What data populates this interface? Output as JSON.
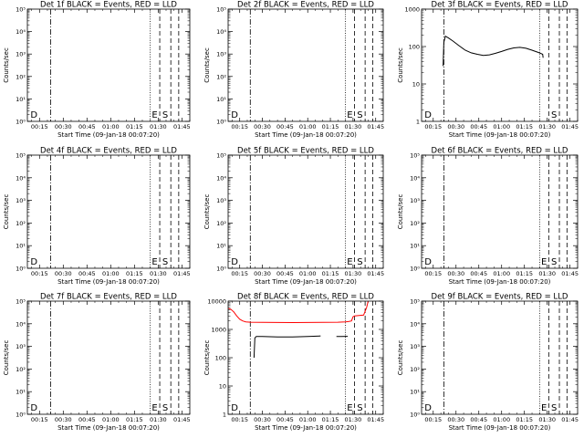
{
  "figure": {
    "xlabel": "Start Time (09-Jan-18 00:07:20)",
    "ylabel": "Counts/sec",
    "x_ticks": [
      "00:15",
      "00:30",
      "00:45",
      "01:00",
      "01:15",
      "01:30",
      "01:45"
    ],
    "x_tick_minutes": [
      15,
      30,
      45,
      60,
      75,
      90,
      105
    ],
    "x_range_minutes": [
      7.33,
      110
    ],
    "colors": {
      "events": "#000000",
      "lld": "#ff0000",
      "background": "#ffffff"
    }
  },
  "chart_data": [
    {
      "id": "1f",
      "type": "line",
      "title": "Det 1f BLACK = Events, RED = LLD",
      "yscale": "log",
      "ylim": [
        1,
        100000
      ],
      "y_ticks": [
        "10⁰",
        "10¹",
        "10²",
        "10³",
        "10⁴",
        "10⁵"
      ],
      "xlabel": "Start Time (09-Jan-18 00:07:20)",
      "ylabel": "Counts/sec",
      "series": [],
      "vlines": [
        {
          "x": 22,
          "style": "dashdot"
        },
        {
          "x": 85,
          "style": "dotted"
        },
        {
          "x": 91,
          "style": "dashed"
        },
        {
          "x": 98,
          "style": "dashed"
        },
        {
          "x": 103,
          "style": "dashed"
        }
      ],
      "markers": [
        {
          "text": "D",
          "x": 9.3
        },
        {
          "text": "E",
          "x": 86
        },
        {
          "text": "S",
          "x": 92.6
        }
      ]
    },
    {
      "id": "2f",
      "type": "line",
      "title": "Det 2f BLACK = Events, RED = LLD",
      "yscale": "log",
      "ylim": [
        1,
        100000
      ],
      "y_ticks": [
        "10⁰",
        "10¹",
        "10²",
        "10³",
        "10⁴",
        "10⁵"
      ],
      "xlabel": "Start Time (09-Jan-18 00:07:20)",
      "ylabel": "Counts/sec",
      "series": [],
      "vlines": [
        {
          "x": 22,
          "style": "dashdot"
        },
        {
          "x": 85,
          "style": "dotted"
        },
        {
          "x": 91,
          "style": "dashed"
        },
        {
          "x": 98,
          "style": "dashed"
        },
        {
          "x": 103,
          "style": "dashed"
        }
      ],
      "markers": [
        {
          "text": "D",
          "x": 9.3
        },
        {
          "text": "E",
          "x": 86
        },
        {
          "text": "S",
          "x": 92.6
        }
      ]
    },
    {
      "id": "3f",
      "type": "line",
      "title": "Det 3f BLACK = Events, RED = LLD",
      "yscale": "log",
      "ylim": [
        1,
        1000
      ],
      "y_ticks": [
        "1",
        "10",
        "100",
        "1000"
      ],
      "xlabel": "Start Time (09-Jan-18 00:07:20)",
      "ylabel": "Counts/sec",
      "series": [
        {
          "color": "#000000",
          "points": [
            [
              21.5,
              30
            ],
            [
              22,
              130
            ],
            [
              23,
              190
            ],
            [
              25,
              170
            ],
            [
              28,
              140
            ],
            [
              32,
              105
            ],
            [
              36,
              80
            ],
            [
              40,
              68
            ],
            [
              44,
              62
            ],
            [
              48,
              58
            ],
            [
              52,
              60
            ],
            [
              56,
              66
            ],
            [
              60,
              74
            ],
            [
              64,
              84
            ],
            [
              68,
              92
            ],
            [
              72,
              95
            ],
            [
              76,
              90
            ],
            [
              80,
              80
            ],
            [
              84,
              70
            ],
            [
              86,
              65
            ],
            [
              87,
              62
            ],
            [
              87.3,
              50
            ]
          ]
        }
      ],
      "vlines": [
        {
          "x": 22,
          "style": "dashdot"
        },
        {
          "x": 85,
          "style": "dotted"
        },
        {
          "x": 91,
          "style": "dashed"
        },
        {
          "x": 98,
          "style": "dashed"
        },
        {
          "x": 103,
          "style": "dashed"
        }
      ],
      "markers": [
        {
          "text": "D",
          "x": 9.3
        },
        {
          "text": "S",
          "x": 92.6
        }
      ]
    },
    {
      "id": "4f",
      "type": "line",
      "title": "Det 4f BLACK = Events, RED = LLD",
      "yscale": "log",
      "ylim": [
        1,
        100000
      ],
      "y_ticks": [
        "10⁰",
        "10¹",
        "10²",
        "10³",
        "10⁴",
        "10⁵"
      ],
      "xlabel": "Start Time (09-Jan-18 00:07:20)",
      "ylabel": "Counts/sec",
      "series": [],
      "vlines": [
        {
          "x": 22,
          "style": "dashdot"
        },
        {
          "x": 85,
          "style": "dotted"
        },
        {
          "x": 91,
          "style": "dashed"
        },
        {
          "x": 98,
          "style": "dashed"
        },
        {
          "x": 103,
          "style": "dashed"
        }
      ],
      "markers": [
        {
          "text": "D",
          "x": 9.3
        },
        {
          "text": "E",
          "x": 86
        },
        {
          "text": "S",
          "x": 92.6
        }
      ]
    },
    {
      "id": "5f",
      "type": "line",
      "title": "Det 5f BLACK = Events, RED = LLD",
      "yscale": "log",
      "ylim": [
        1,
        100000
      ],
      "y_ticks": [
        "10⁰",
        "10¹",
        "10²",
        "10³",
        "10⁴",
        "10⁵"
      ],
      "xlabel": "Start Time (09-Jan-18 00:07:20)",
      "ylabel": "Counts/sec",
      "series": [],
      "vlines": [
        {
          "x": 22,
          "style": "dashdot"
        },
        {
          "x": 85,
          "style": "dotted"
        },
        {
          "x": 91,
          "style": "dashed"
        },
        {
          "x": 98,
          "style": "dashed"
        },
        {
          "x": 103,
          "style": "dashed"
        }
      ],
      "markers": [
        {
          "text": "D",
          "x": 9.3
        },
        {
          "text": "E",
          "x": 86
        },
        {
          "text": "S",
          "x": 92.6
        }
      ]
    },
    {
      "id": "6f",
      "type": "line",
      "title": "Det 6f BLACK = Events, RED = LLD",
      "yscale": "log",
      "ylim": [
        1,
        100000
      ],
      "y_ticks": [
        "10⁰",
        "10¹",
        "10²",
        "10³",
        "10⁴",
        "10⁵"
      ],
      "xlabel": "Start Time (09-Jan-18 00:07:20)",
      "ylabel": "Counts/sec",
      "series": [],
      "vlines": [
        {
          "x": 22,
          "style": "dashdot"
        },
        {
          "x": 85,
          "style": "dotted"
        },
        {
          "x": 91,
          "style": "dashed"
        },
        {
          "x": 98,
          "style": "dashed"
        },
        {
          "x": 103,
          "style": "dashed"
        }
      ],
      "markers": [
        {
          "text": "D",
          "x": 9.3
        },
        {
          "text": "E",
          "x": 86
        },
        {
          "text": "S",
          "x": 92.6
        }
      ]
    },
    {
      "id": "7f",
      "type": "line",
      "title": "Det 7f BLACK = Events, RED = LLD",
      "yscale": "log",
      "ylim": [
        1,
        100000
      ],
      "y_ticks": [
        "10⁰",
        "10¹",
        "10²",
        "10³",
        "10⁴",
        "10⁵"
      ],
      "xlabel": "Start Time (09-Jan-18 00:07:20)",
      "ylabel": "Counts/sec",
      "series": [],
      "vlines": [
        {
          "x": 22,
          "style": "dashdot"
        },
        {
          "x": 85,
          "style": "dotted"
        },
        {
          "x": 91,
          "style": "dashed"
        },
        {
          "x": 98,
          "style": "dashed"
        },
        {
          "x": 103,
          "style": "dashed"
        }
      ],
      "markers": [
        {
          "text": "D",
          "x": 9.3
        },
        {
          "text": "E",
          "x": 86
        },
        {
          "text": "S",
          "x": 92.6
        }
      ]
    },
    {
      "id": "8f",
      "type": "line",
      "title": "Det 8f BLACK = Events, RED = LLD",
      "yscale": "log",
      "ylim": [
        1,
        10000
      ],
      "y_ticks": [
        "1",
        "10",
        "100",
        "1000",
        "10000"
      ],
      "xlabel": "Start Time (09-Jan-18 00:07:20)",
      "ylabel": "Counts/sec",
      "series": [
        {
          "color": "#ff0000",
          "points": [
            [
              7.5,
              5500
            ],
            [
              9,
              5200
            ],
            [
              11,
              4200
            ],
            [
              13,
              3000
            ],
            [
              15,
              2300
            ],
            [
              17,
              2000
            ],
            [
              19,
              1850
            ],
            [
              22,
              1800
            ],
            [
              30,
              1780
            ],
            [
              40,
              1760
            ],
            [
              50,
              1750
            ],
            [
              60,
              1760
            ],
            [
              70,
              1780
            ],
            [
              80,
              1800
            ],
            [
              85,
              1850
            ],
            [
              87,
              1900
            ],
            [
              89,
              2000
            ],
            [
              90,
              2800
            ],
            [
              91,
              3000
            ],
            [
              94,
              3100
            ],
            [
              97,
              3200
            ],
            [
              99,
              6000
            ],
            [
              100,
              9800
            ]
          ]
        },
        {
          "color": "#000000",
          "points": [
            [
              24.5,
              100
            ],
            [
              25,
              500
            ],
            [
              26,
              560
            ],
            [
              30,
              560
            ],
            [
              40,
              540
            ],
            [
              50,
              545
            ],
            [
              60,
              560
            ],
            [
              68,
              580
            ],
            [
              68.5,
              600
            ]
          ]
        },
        {
          "color": "#000000",
          "points": [
            [
              79,
              560
            ],
            [
              82,
              560
            ],
            [
              86.5,
              570
            ]
          ]
        }
      ],
      "vlines": [
        {
          "x": 22,
          "style": "dashdot"
        },
        {
          "x": 85,
          "style": "dotted"
        },
        {
          "x": 91,
          "style": "dashed"
        },
        {
          "x": 98,
          "style": "dashed"
        },
        {
          "x": 103,
          "style": "dashed"
        }
      ],
      "markers": [
        {
          "text": "D",
          "x": 9.3
        },
        {
          "text": "E",
          "x": 86
        },
        {
          "text": "S",
          "x": 92.6
        }
      ]
    },
    {
      "id": "9f",
      "type": "line",
      "title": "Det 9f BLACK = Events, RED = LLD",
      "yscale": "log",
      "ylim": [
        1,
        100000
      ],
      "y_ticks": [
        "10⁰",
        "10¹",
        "10²",
        "10³",
        "10⁴",
        "10⁵"
      ],
      "xlabel": "Start Time (09-Jan-18 00:07:20)",
      "ylabel": "Counts/sec",
      "series": [],
      "vlines": [
        {
          "x": 22,
          "style": "dashdot"
        },
        {
          "x": 85,
          "style": "dotted"
        },
        {
          "x": 91,
          "style": "dashed"
        },
        {
          "x": 98,
          "style": "dashed"
        },
        {
          "x": 103,
          "style": "dashed"
        }
      ],
      "markers": [
        {
          "text": "D",
          "x": 9.3
        },
        {
          "text": "E",
          "x": 86
        },
        {
          "text": "S",
          "x": 92.6
        }
      ]
    }
  ]
}
